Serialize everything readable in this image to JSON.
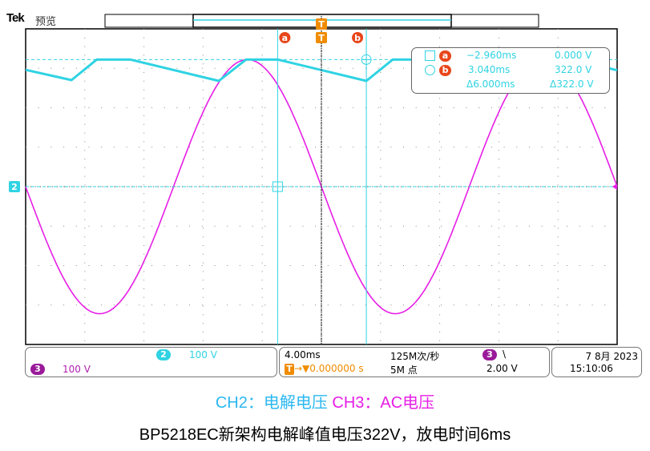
{
  "header": {
    "brand": "Tek",
    "mode": "预览"
  },
  "colors": {
    "ch2": "#2fd3e3",
    "ch3": "#e61ee6",
    "trigger": "#f08c00",
    "cursor_label": "#e8461a",
    "ch3_badge": "#9a1a9a",
    "grid": "#888888"
  },
  "markers": {
    "cursor_a": "a",
    "cursor_b": "b",
    "trigger": "T",
    "ch2": "2"
  },
  "cursor_readout": {
    "a_time": "−2.960ms",
    "a_value": "0.000 V",
    "b_time": "3.040ms",
    "b_value": "322.0 V",
    "delta_time": "Δ6.000ms",
    "delta_value": "Δ322.0 V"
  },
  "status": {
    "ch2_label": "2",
    "ch2_scale": "100 V",
    "ch3_label": "3",
    "ch3_scale": "100 V",
    "timebase": "4.00ms",
    "trigger_pos": "0.000000 s",
    "sample_rate": "125M次/秒",
    "record_length": "5M 点",
    "trigger_channel": "3",
    "trigger_slope": "\\",
    "trigger_level": "2.00 V",
    "date": "7 8月 2023",
    "time": "15:10:06"
  },
  "captions": {
    "ch2": "CH2：电解电压",
    "ch3": "CH3：AC电压",
    "title": "BP5218EC新架构电解峰值电压322V，放电时间6ms"
  },
  "chart_data": {
    "type": "line",
    "x_unit": "ms",
    "y_unit": "V",
    "xlim": [
      -20,
      20
    ],
    "ylim": [
      -400,
      400
    ],
    "x_divisions": 10,
    "y_divisions": 8,
    "grid": true,
    "cursors": {
      "a": {
        "t": -2.96,
        "v": 0
      },
      "b": {
        "t": 3.04,
        "v": 322
      }
    },
    "series": [
      {
        "color": "#2fd3e3",
        "points": [
          [
            -20,
            296
          ],
          [
            -16.9,
            270
          ],
          [
            -15.2,
            322
          ],
          [
            -12.9,
            322
          ],
          [
            -6.94,
            268
          ],
          [
            -5.1,
            322
          ],
          [
            -2.93,
            322
          ],
          [
            3.04,
            268
          ],
          [
            4.82,
            322
          ],
          [
            7.1,
            322
          ],
          [
            13.06,
            268
          ],
          [
            14.9,
            322
          ],
          [
            17.0,
            322
          ],
          [
            20,
            295
          ]
        ]
      },
      {
        "color": "#e61ee6",
        "waveform": "sine",
        "amplitude": 322,
        "frequency_hz": 50
      }
    ]
  }
}
